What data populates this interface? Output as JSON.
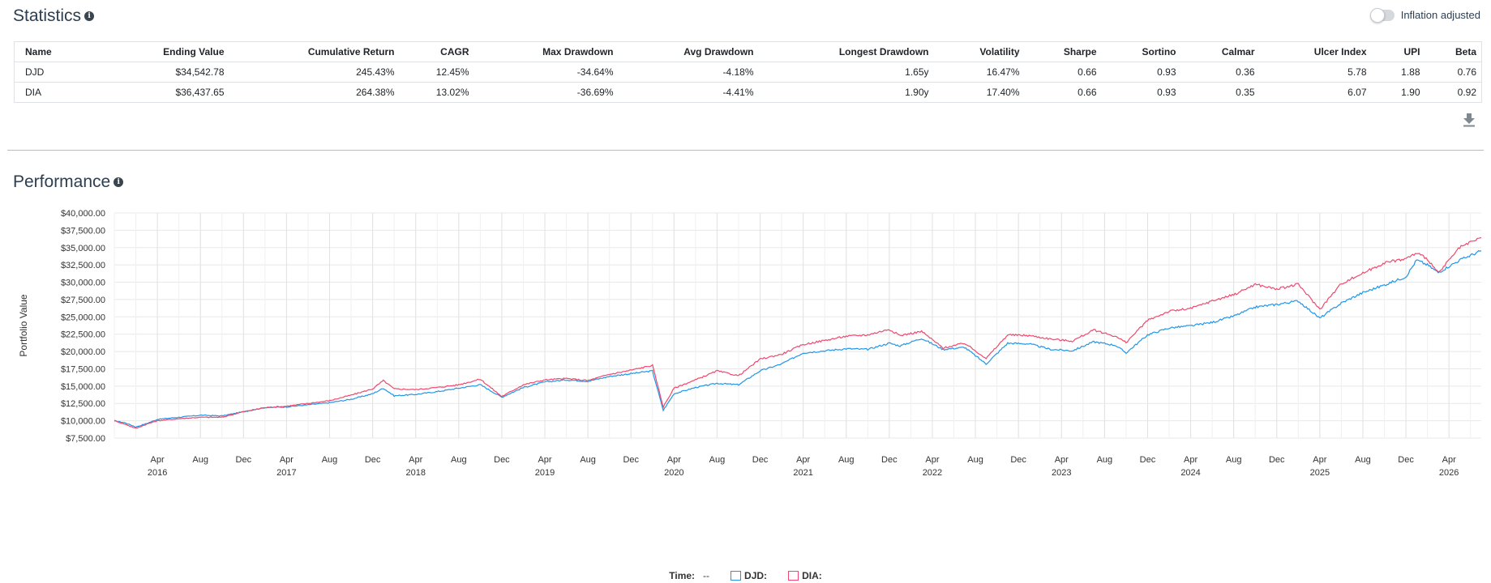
{
  "statistics": {
    "title": "Statistics",
    "info": "i",
    "inflation_label": "Inflation adjusted",
    "inflation_enabled": false,
    "columns": [
      "Name",
      "Ending Value",
      "Cumulative Return",
      "CAGR",
      "Max Drawdown",
      "Avg Drawdown",
      "Longest Drawdown",
      "Volatility",
      "Sharpe",
      "Sortino",
      "Calmar",
      "Ulcer Index",
      "UPI",
      "Beta"
    ],
    "rows": [
      [
        "DJD",
        "$34,542.78",
        "245.43%",
        "12.45%",
        "-34.64%",
        "-4.18%",
        "1.65y",
        "16.47%",
        "0.66",
        "0.93",
        "0.36",
        "5.78",
        "1.88",
        "0.76"
      ],
      [
        "DIA",
        "$36,437.65",
        "264.38%",
        "13.02%",
        "-36.69%",
        "-4.41%",
        "1.90y",
        "17.40%",
        "0.66",
        "0.93",
        "0.35",
        "6.07",
        "1.90",
        "0.92"
      ]
    ]
  },
  "performance": {
    "title": "Performance",
    "info": "i"
  },
  "legend": {
    "time_label": "Time:",
    "time_value": "--",
    "items": [
      {
        "label": "DJD:",
        "color": "#2196e8"
      },
      {
        "label": "DIA:",
        "color": "#f0486e"
      }
    ]
  },
  "chart_data": {
    "type": "line",
    "ylabel": "Portfolio Value",
    "ylim": [
      7500,
      40000
    ],
    "grid": true,
    "y_ticks": [
      "$7,500.00",
      "$10,000.00",
      "$12,500.00",
      "$15,000.00",
      "$17,500.00",
      "$20,000.00",
      "$22,500.00",
      "$25,000.00",
      "$27,500.00",
      "$30,000.00",
      "$32,500.00",
      "$35,000.00",
      "$37,500.00",
      "$40,000.00"
    ],
    "x_ticks": [
      {
        "date": "2016-04",
        "label": "Apr",
        "year": "2016"
      },
      {
        "date": "2016-08",
        "label": "Aug"
      },
      {
        "date": "2016-12",
        "label": "Dec"
      },
      {
        "date": "2017-04",
        "label": "Apr",
        "year": "2017"
      },
      {
        "date": "2017-08",
        "label": "Aug"
      },
      {
        "date": "2017-12",
        "label": "Dec"
      },
      {
        "date": "2018-04",
        "label": "Apr",
        "year": "2018"
      },
      {
        "date": "2018-08",
        "label": "Aug"
      },
      {
        "date": "2018-12",
        "label": "Dec"
      },
      {
        "date": "2019-04",
        "label": "Apr",
        "year": "2019"
      },
      {
        "date": "2019-08",
        "label": "Aug"
      },
      {
        "date": "2019-12",
        "label": "Dec"
      },
      {
        "date": "2020-04",
        "label": "Apr",
        "year": "2020"
      },
      {
        "date": "2020-08",
        "label": "Aug"
      },
      {
        "date": "2020-12",
        "label": "Dec"
      },
      {
        "date": "2021-04",
        "label": "Apr",
        "year": "2021"
      },
      {
        "date": "2021-08",
        "label": "Aug"
      },
      {
        "date": "2021-12",
        "label": "Dec"
      },
      {
        "date": "2022-04",
        "label": "Apr",
        "year": "2022"
      },
      {
        "date": "2022-08",
        "label": "Aug"
      },
      {
        "date": "2022-12",
        "label": "Dec"
      },
      {
        "date": "2023-04",
        "label": "Apr",
        "year": "2023"
      },
      {
        "date": "2023-08",
        "label": "Aug"
      },
      {
        "date": "2023-12",
        "label": "Dec"
      },
      {
        "date": "2024-04",
        "label": "Apr",
        "year": "2024"
      },
      {
        "date": "2024-08",
        "label": "Aug"
      },
      {
        "date": "2024-12",
        "label": "Dec"
      },
      {
        "date": "2025-04",
        "label": "Apr",
        "year": "2025"
      },
      {
        "date": "2025-08",
        "label": "Aug"
      },
      {
        "date": "2025-12",
        "label": "Dec"
      },
      {
        "date": "2026-04",
        "label": "Apr",
        "year": "2026"
      }
    ],
    "x_range": [
      "2015-12",
      "2026-07"
    ],
    "series": [
      {
        "name": "DJD",
        "color": "#2196e8",
        "points": [
          [
            "2015-12",
            10000
          ],
          [
            "2016-01",
            9700
          ],
          [
            "2016-02",
            9100
          ],
          [
            "2016-03",
            9600
          ],
          [
            "2016-04",
            10200
          ],
          [
            "2016-06",
            10500
          ],
          [
            "2016-08",
            10800
          ],
          [
            "2016-10",
            10700
          ],
          [
            "2016-12",
            11300
          ],
          [
            "2017-02",
            11900
          ],
          [
            "2017-04",
            12000
          ],
          [
            "2017-06",
            12300
          ],
          [
            "2017-08",
            12600
          ],
          [
            "2017-10",
            13100
          ],
          [
            "2017-12",
            13900
          ],
          [
            "2018-01",
            14700
          ],
          [
            "2018-02",
            13600
          ],
          [
            "2018-04",
            13800
          ],
          [
            "2018-06",
            14200
          ],
          [
            "2018-08",
            14700
          ],
          [
            "2018-10",
            15200
          ],
          [
            "2018-12",
            13400
          ],
          [
            "2019-02",
            14800
          ],
          [
            "2019-04",
            15600
          ],
          [
            "2019-06",
            15900
          ],
          [
            "2019-08",
            15700
          ],
          [
            "2019-10",
            16400
          ],
          [
            "2019-12",
            16800
          ],
          [
            "2020-02",
            17200
          ],
          [
            "2020-03",
            11500
          ],
          [
            "2020-04",
            13900
          ],
          [
            "2020-06",
            14800
          ],
          [
            "2020-08",
            15400
          ],
          [
            "2020-10",
            15200
          ],
          [
            "2020-12",
            17200
          ],
          [
            "2021-02",
            18200
          ],
          [
            "2021-04",
            19800
          ],
          [
            "2021-06",
            20100
          ],
          [
            "2021-08",
            20400
          ],
          [
            "2021-10",
            20300
          ],
          [
            "2021-12",
            21200
          ],
          [
            "2022-01",
            20800
          ],
          [
            "2022-03",
            21900
          ],
          [
            "2022-05",
            20300
          ],
          [
            "2022-07",
            20600
          ],
          [
            "2022-09",
            18200
          ],
          [
            "2022-11",
            21200
          ],
          [
            "2023-01",
            21100
          ],
          [
            "2023-03",
            20300
          ],
          [
            "2023-05",
            20100
          ],
          [
            "2023-07",
            21400
          ],
          [
            "2023-09",
            20900
          ],
          [
            "2023-10",
            19800
          ],
          [
            "2023-12",
            22400
          ],
          [
            "2024-02",
            23400
          ],
          [
            "2024-04",
            23700
          ],
          [
            "2024-06",
            24200
          ],
          [
            "2024-08",
            25100
          ],
          [
            "2024-10",
            26400
          ],
          [
            "2024-12",
            26800
          ],
          [
            "2025-02",
            27300
          ],
          [
            "2025-04",
            24800
          ],
          [
            "2025-06",
            27000
          ],
          [
            "2025-08",
            28500
          ],
          [
            "2025-10",
            29600
          ],
          [
            "2025-12",
            30800
          ],
          [
            "2026-01",
            33200
          ],
          [
            "2026-02",
            32500
          ],
          [
            "2026-03",
            31400
          ],
          [
            "2026-05",
            33200
          ],
          [
            "2026-07",
            34543
          ]
        ]
      },
      {
        "name": "DIA",
        "color": "#f0486e",
        "points": [
          [
            "2015-12",
            10000
          ],
          [
            "2016-01",
            9500
          ],
          [
            "2016-02",
            8900
          ],
          [
            "2016-03",
            9500
          ],
          [
            "2016-04",
            10000
          ],
          [
            "2016-06",
            10300
          ],
          [
            "2016-08",
            10500
          ],
          [
            "2016-10",
            10500
          ],
          [
            "2016-12",
            11300
          ],
          [
            "2017-02",
            11900
          ],
          [
            "2017-04",
            12100
          ],
          [
            "2017-06",
            12500
          ],
          [
            "2017-08",
            12900
          ],
          [
            "2017-10",
            13700
          ],
          [
            "2017-12",
            14600
          ],
          [
            "2018-01",
            15800
          ],
          [
            "2018-02",
            14600
          ],
          [
            "2018-04",
            14500
          ],
          [
            "2018-06",
            14800
          ],
          [
            "2018-08",
            15200
          ],
          [
            "2018-10",
            16000
          ],
          [
            "2018-12",
            13500
          ],
          [
            "2019-02",
            15200
          ],
          [
            "2019-04",
            15900
          ],
          [
            "2019-06",
            16100
          ],
          [
            "2019-08",
            15800
          ],
          [
            "2019-10",
            16700
          ],
          [
            "2019-12",
            17300
          ],
          [
            "2020-02",
            18000
          ],
          [
            "2020-03",
            12000
          ],
          [
            "2020-04",
            14700
          ],
          [
            "2020-06",
            15900
          ],
          [
            "2020-08",
            17200
          ],
          [
            "2020-10",
            16500
          ],
          [
            "2020-12",
            18900
          ],
          [
            "2021-02",
            19600
          ],
          [
            "2021-04",
            21000
          ],
          [
            "2021-06",
            21600
          ],
          [
            "2021-08",
            22200
          ],
          [
            "2021-10",
            22400
          ],
          [
            "2021-12",
            23200
          ],
          [
            "2022-01",
            22300
          ],
          [
            "2022-03",
            22900
          ],
          [
            "2022-05",
            20500
          ],
          [
            "2022-07",
            21200
          ],
          [
            "2022-09",
            19000
          ],
          [
            "2022-11",
            22400
          ],
          [
            "2023-01",
            22300
          ],
          [
            "2023-03",
            21800
          ],
          [
            "2023-05",
            21500
          ],
          [
            "2023-07",
            23100
          ],
          [
            "2023-09",
            22200
          ],
          [
            "2023-10",
            21300
          ],
          [
            "2023-12",
            24500
          ],
          [
            "2024-02",
            25800
          ],
          [
            "2024-04",
            26200
          ],
          [
            "2024-06",
            27300
          ],
          [
            "2024-08",
            28200
          ],
          [
            "2024-10",
            29700
          ],
          [
            "2024-12",
            29000
          ],
          [
            "2025-02",
            29700
          ],
          [
            "2025-04",
            26100
          ],
          [
            "2025-06",
            29800
          ],
          [
            "2025-08",
            31300
          ],
          [
            "2025-10",
            32800
          ],
          [
            "2025-12",
            33400
          ],
          [
            "2026-01",
            34200
          ],
          [
            "2026-02",
            33400
          ],
          [
            "2026-03",
            31300
          ],
          [
            "2026-05",
            35000
          ],
          [
            "2026-07",
            36438
          ]
        ]
      }
    ]
  }
}
